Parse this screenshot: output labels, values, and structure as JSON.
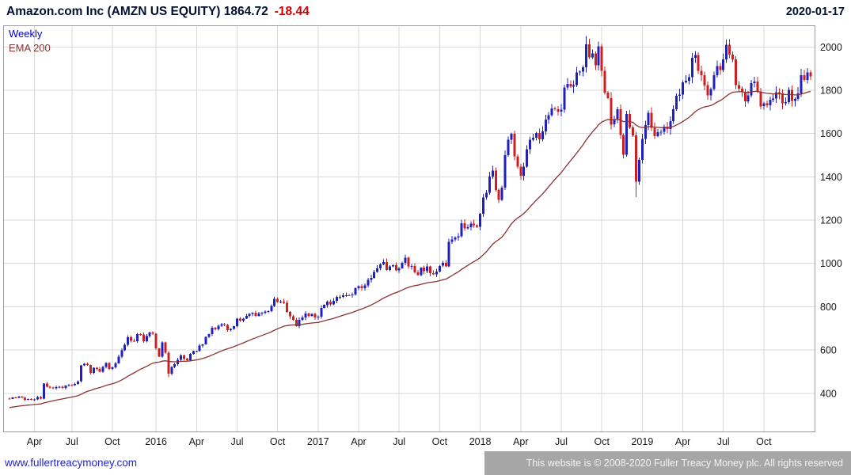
{
  "header": {
    "title": "Amazon.com Inc (AMZN US EQUITY) 1864.72",
    "change": "-18.44",
    "date": "2020-01-17"
  },
  "legend": {
    "timeframe": "Weekly",
    "overlay": "EMA 200"
  },
  "footer": {
    "link": "www.fullertreacymoney.com",
    "copyright": "This website is © 2008-2020 Fuller Treacy Money plc. All rights reserved"
  },
  "colors": {
    "title": "#001133",
    "change": "#cc0000",
    "link": "#2323cc",
    "footer_bg": "#a6a6a6",
    "footer_text": "#f2f2f2",
    "up": "#2020bb",
    "down": "#cc2020",
    "ema": "#8b3232",
    "weekly_label": "#0000cc",
    "grid": "#d9d9d9",
    "frame": "#9a9aa2",
    "axis_text": "#1a1a1a"
  },
  "chart_data": {
    "type": "candlestick",
    "title": "Amazon.com Inc (AMZN US EQUITY)",
    "last_price": 1864.72,
    "change": -18.44,
    "timeframe": "Weekly",
    "overlay": "EMA 200",
    "end_date": "2020-01-17",
    "ylim": [
      220,
      2100
    ],
    "y_ticks": [
      400,
      600,
      800,
      1000,
      1200,
      1400,
      1600,
      1800,
      2000
    ],
    "x_ticks": [
      {
        "label": "Apr",
        "week": 8
      },
      {
        "label": "Jul",
        "week": 20
      },
      {
        "label": "Oct",
        "week": 33
      },
      {
        "label": "2016",
        "week": 47
      },
      {
        "label": "Apr",
        "week": 60
      },
      {
        "label": "Jul",
        "week": 73
      },
      {
        "label": "Oct",
        "week": 86
      },
      {
        "label": "2017",
        "week": 99
      },
      {
        "label": "Apr",
        "week": 112
      },
      {
        "label": "Jul",
        "week": 125
      },
      {
        "label": "Oct",
        "week": 138
      },
      {
        "label": "2018",
        "week": 151
      },
      {
        "label": "Apr",
        "week": 164
      },
      {
        "label": "Jul",
        "week": 177
      },
      {
        "label": "Oct",
        "week": 190
      },
      {
        "label": "2019",
        "week": 203
      },
      {
        "label": "Apr",
        "week": 216
      },
      {
        "label": "Jul",
        "week": 229
      },
      {
        "label": "Oct",
        "week": 242
      }
    ],
    "ema": {
      "period_weeks": 40,
      "seed": 332
    },
    "weekly_closes": [
      374,
      381,
      380,
      385,
      380,
      370,
      374,
      370,
      372,
      383,
      376,
      445,
      430,
      426,
      424,
      429,
      430,
      424,
      435,
      438,
      437,
      443,
      455,
      529,
      536,
      531,
      494,
      518,
      513,
      499,
      521,
      540,
      512,
      520,
      539,
      570,
      599,
      625,
      659,
      643,
      640,
      673,
      672,
      640,
      665,
      680,
      676,
      607,
      570,
      636,
      587,
      490,
      521,
      535,
      555,
      575,
      560,
      553,
      582,
      594,
      595,
      620,
      626,
      660,
      673,
      703,
      696,
      712,
      719,
      715,
      692,
      698,
      710,
      745,
      735,
      745,
      758,
      766,
      772,
      757,
      769,
      772,
      778,
      780,
      804,
      837,
      822,
      823,
      818,
      776,
      755,
      739,
      710,
      740,
      750,
      768,
      758,
      766,
      750,
      754,
      795,
      808,
      824,
      810,
      827,
      845,
      845,
      853,
      853,
      852,
      856,
      886,
      895,
      885,
      899,
      924,
      934,
      961,
      977,
      995,
      1007,
      970,
      987,
      992,
      968,
      978,
      1002,
      1026,
      987,
      988,
      958,
      946,
      980,
      965,
      986,
      955,
      950,
      962,
      989,
      1003,
      986,
      1100,
      1111,
      1120,
      1126,
      1186,
      1162,
      1168,
      1184,
      1177,
      1169,
      1229,
      1305,
      1327,
      1402,
      1429,
      1339,
      1294,
      1350,
      1500,
      1571,
      1598,
      1495,
      1447,
      1405,
      1447,
      1527,
      1572,
      1580,
      1602,
      1574,
      1610,
      1665,
      1684,
      1716,
      1713,
      1701,
      1710,
      1813,
      1829,
      1817,
      1823,
      1882,
      1886,
      1906,
      2013,
      1952,
      1970,
      1915,
      2003,
      1890,
      1789,
      1764,
      1642,
      1665,
      1712,
      1593,
      1502,
      1690,
      1629,
      1592,
      1377,
      1478,
      1576,
      1640,
      1696,
      1626,
      1588,
      1607,
      1608,
      1632,
      1621,
      1657,
      1713,
      1774,
      1780,
      1837,
      1844,
      1861,
      1950,
      1962,
      1889,
      1869,
      1823,
      1776,
      1805,
      1869,
      1911,
      1893,
      1943,
      2011,
      1964,
      1943,
      1823,
      1807,
      1793,
      1749,
      1776,
      1833,
      1840,
      1794,
      1726,
      1740,
      1731,
      1757,
      1761,
      1791,
      1785,
      1739,
      1745,
      1801,
      1751,
      1760,
      1786,
      1869,
      1848,
      1883,
      1864.72
    ],
    "wick_overrides": {
      "51": {
        "low": 474
      },
      "185": {
        "high": 2050
      },
      "201": {
        "low": 1307
      },
      "230": {
        "high": 2035
      },
      "256": {
        "high": 1902
      }
    }
  }
}
